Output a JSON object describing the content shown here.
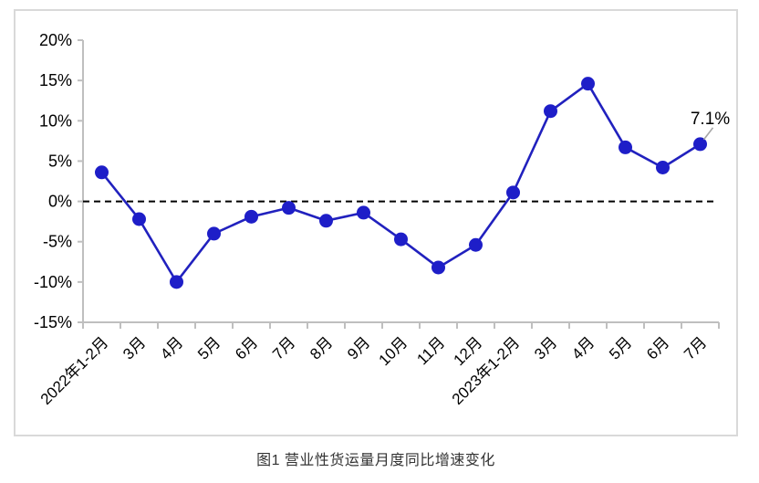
{
  "figure": {
    "caption": "图1 营业性货运量月度同比增速变化"
  },
  "chart_data": {
    "type": "line",
    "title": "",
    "xlabel": "",
    "ylabel": "",
    "categories": [
      "2022年1-2月",
      "3月",
      "4月",
      "5月",
      "6月",
      "7月",
      "8月",
      "9月",
      "10月",
      "11月",
      "12月",
      "2023年1-2月",
      "3月",
      "4月",
      "5月",
      "6月",
      "7月"
    ],
    "series": [
      {
        "name": "营业性货运量月度同比增速",
        "values": [
          3.6,
          -2.2,
          -10.0,
          -4.0,
          -1.9,
          -0.8,
          -2.4,
          -1.4,
          -4.7,
          -8.2,
          -5.4,
          1.1,
          11.2,
          14.6,
          6.7,
          4.2,
          7.1
        ]
      }
    ],
    "ylim": [
      -15,
      20
    ],
    "ytick_step": 5,
    "ytick_format": "percent",
    "grid": "off",
    "legend": "none",
    "zero_line": "dashed-black",
    "annotation": {
      "text": "7.1%",
      "point_index": 16
    },
    "colors": {
      "line": "#2121bE",
      "marker": "#1e1ec8",
      "axis": "#bfbfbf",
      "zero_line": "#000000",
      "annotation_leader": "#a6a6a6",
      "text": "#000000",
      "frame_border": "#d9d9d9"
    }
  }
}
